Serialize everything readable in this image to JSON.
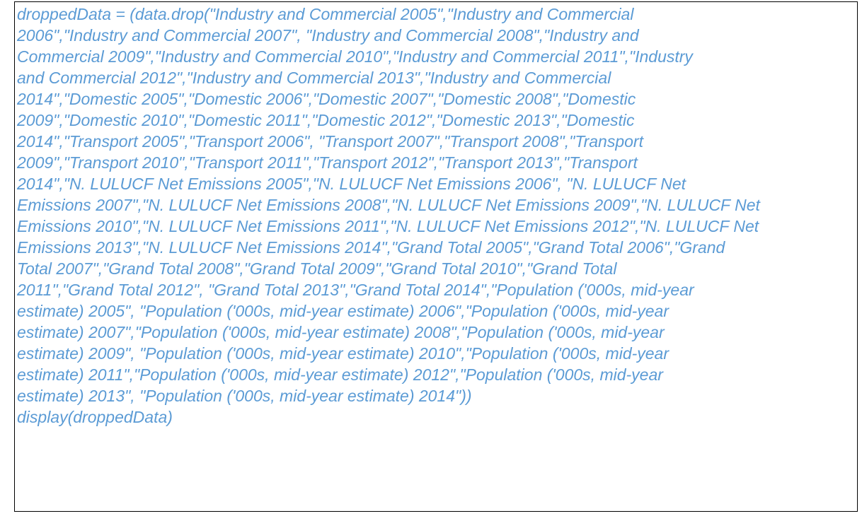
{
  "text_color": "#5B9BD5",
  "border_color": "#000000",
  "code_lines": [
    "droppedData = (data.drop(\"Industry and Commercial 2005\",\"Industry and Commercial",
    "2006\",\"Industry and Commercial 2007\", \"Industry and Commercial 2008\",\"Industry and",
    "Commercial 2009\",\"Industry and Commercial 2010\",\"Industry and Commercial 2011\",\"Industry",
    "and Commercial 2012\",\"Industry and Commercial 2013\",\"Industry and Commercial",
    "2014\",\"Domestic 2005\",\"Domestic 2006\",\"Domestic 2007\",\"Domestic 2008\",\"Domestic",
    "2009\",\"Domestic 2010\",\"Domestic 2011\",\"Domestic 2012\",\"Domestic 2013\",\"Domestic",
    "2014\",\"Transport 2005\",\"Transport 2006\", \"Transport 2007\",\"Transport 2008\",\"Transport",
    "2009\",\"Transport 2010\",\"Transport 2011\",\"Transport 2012\",\"Transport 2013\",\"Transport",
    "2014\",\"N. LULUCF Net Emissions 2005\",\"N. LULUCF Net Emissions 2006\", \"N. LULUCF Net",
    "Emissions 2007\",\"N. LULUCF Net Emissions 2008\",\"N. LULUCF Net Emissions 2009\",\"N. LULUCF Net",
    "Emissions 2010\",\"N. LULUCF Net Emissions 2011\",\"N. LULUCF Net Emissions 2012\",\"N. LULUCF Net",
    "Emissions 2013\",\"N. LULUCF Net Emissions 2014\",\"Grand Total 2005\",\"Grand Total 2006\",\"Grand",
    "Total 2007\",\"Grand Total 2008\",\"Grand Total 2009\",\"Grand Total 2010\",\"Grand Total",
    "2011\",\"Grand Total 2012\", \"Grand Total 2013\",\"Grand Total 2014\",\"Population ('000s, mid-year",
    "estimate) 2005\", \"Population ('000s, mid-year estimate) 2006\",\"Population ('000s, mid-year",
    "estimate) 2007\",\"Population ('000s, mid-year estimate) 2008\",\"Population ('000s, mid-year",
    "estimate) 2009\", \"Population ('000s, mid-year estimate) 2010\",\"Population ('000s, mid-year",
    "estimate) 2011\",\"Population ('000s, mid-year estimate) 2012\",\"Population ('000s, mid-year",
    "estimate) 2013\", \"Population ('000s, mid-year estimate) 2014\"))",
    "display(droppedData)"
  ]
}
